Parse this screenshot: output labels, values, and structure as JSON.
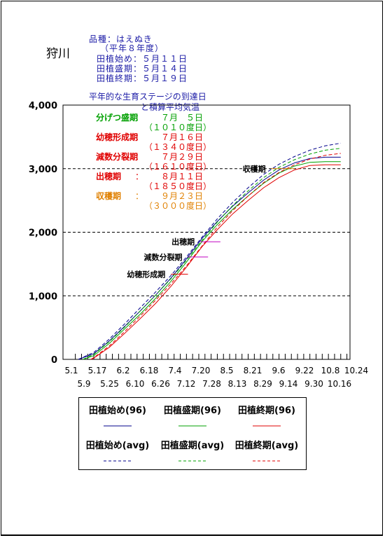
{
  "place": "狩川",
  "variety_line": "品種：はえぬき",
  "year_line": "（平年８年度）",
  "planting_lines": [
    "田植始め：５月１１日",
    "田植盛期：５月１４日",
    "田植終期：５月１９日"
  ],
  "chart_title_lines": [
    "平年的な生育ステージの到達日",
    "と積算平均気温"
  ],
  "stages": [
    {
      "name": "分げつ盛期",
      "sep": "：",
      "date": "７月　５日",
      "temp": "（１０１０度日）",
      "color": "#00a000"
    },
    {
      "name": "幼穂形成期",
      "sep": "：",
      "date": "７月１６日",
      "temp": "（１３４０度日）",
      "color": "#e00000"
    },
    {
      "name": "減数分裂期",
      "sep": "：",
      "date": "７月２９日",
      "temp": "（１６１０度日）",
      "color": "#e00000"
    },
    {
      "name": "出穂期",
      "sep": "：",
      "date": "８月１１日",
      "temp": "（１８５０度日）",
      "color": "#e00000"
    },
    {
      "name": "収穫期",
      "sep": "：",
      "date": "９月２３日",
      "temp": "（３０００度日）",
      "color": "#e08000"
    }
  ],
  "chart_data": {
    "type": "line",
    "title": "",
    "xlabel": "",
    "ylabel": "",
    "ylim": [
      0,
      4000
    ],
    "y_ticks": [
      0,
      1000,
      2000,
      3000,
      4000
    ],
    "y_tick_labels": [
      "0",
      "1,000",
      "2,000",
      "3,000",
      "4,000"
    ],
    "x_tick_labels_top": [
      "5.1",
      "5.17",
      "6.2",
      "6.18",
      "7.4",
      "7.20",
      "8.5",
      "8.21",
      "9.6",
      "9.22",
      "10.8",
      "10.24"
    ],
    "x_tick_labels_bottom": [
      "5.9",
      "5.25",
      "6.10",
      "6.26",
      "7.12",
      "7.28",
      "8.13",
      "8.29",
      "9.14",
      "9.30",
      "10.16"
    ],
    "x_start_day": 0,
    "x_end_day": 186,
    "dashed_gridlines_y": [
      1000,
      2000,
      3000
    ],
    "series": [
      {
        "name": "田植始め(96)",
        "color": "#00008b",
        "style": "solid",
        "x": [
          10,
          20,
          30,
          40,
          50,
          60,
          70,
          80,
          90,
          100,
          110,
          120,
          130,
          140,
          150,
          160,
          170,
          180
        ],
        "y": [
          0,
          90,
          290,
          520,
          760,
          1010,
          1280,
          1580,
          1900,
          2170,
          2410,
          2620,
          2820,
          2980,
          3090,
          3160,
          3180,
          3180
        ]
      },
      {
        "name": "田植盛期(96)",
        "color": "#00a000",
        "style": "solid",
        "x": [
          13,
          20,
          30,
          40,
          50,
          60,
          70,
          80,
          90,
          100,
          110,
          120,
          130,
          140,
          150,
          160,
          170,
          180
        ],
        "y": [
          0,
          60,
          250,
          480,
          710,
          960,
          1230,
          1530,
          1850,
          2120,
          2360,
          2570,
          2770,
          2930,
          3040,
          3100,
          3110,
          3110
        ]
      },
      {
        "name": "田植終期(96)",
        "color": "#e00000",
        "style": "solid",
        "x": [
          18,
          20,
          30,
          40,
          50,
          60,
          70,
          80,
          90,
          100,
          110,
          120,
          130,
          140,
          150,
          160,
          170,
          180
        ],
        "y": [
          0,
          20,
          190,
          410,
          640,
          880,
          1150,
          1450,
          1770,
          2040,
          2290,
          2500,
          2700,
          2860,
          2980,
          3050,
          3060,
          3060
        ]
      },
      {
        "name": "田植始め(avg)",
        "color": "#00008b",
        "style": "dashed",
        "x": [
          10,
          20,
          30,
          40,
          50,
          60,
          70,
          80,
          90,
          100,
          110,
          120,
          130,
          140,
          150,
          160,
          170,
          180
        ],
        "y": [
          0,
          110,
          320,
          560,
          810,
          1060,
          1320,
          1610,
          1920,
          2210,
          2470,
          2700,
          2910,
          3070,
          3190,
          3290,
          3360,
          3400
        ]
      },
      {
        "name": "田植盛期(avg)",
        "color": "#00a000",
        "style": "dashed",
        "x": [
          13,
          20,
          30,
          40,
          50,
          60,
          70,
          80,
          90,
          100,
          110,
          120,
          130,
          140,
          150,
          160,
          170,
          180
        ],
        "y": [
          0,
          80,
          280,
          510,
          760,
          1010,
          1270,
          1560,
          1870,
          2160,
          2420,
          2650,
          2860,
          3020,
          3140,
          3230,
          3290,
          3320
        ]
      },
      {
        "name": "田植終期(avg)",
        "color": "#e00000",
        "style": "dashed",
        "x": [
          18,
          20,
          30,
          40,
          50,
          60,
          70,
          80,
          90,
          100,
          110,
          120,
          130,
          140,
          150,
          160,
          170,
          180
        ],
        "y": [
          0,
          30,
          210,
          440,
          680,
          930,
          1190,
          1470,
          1780,
          2080,
          2340,
          2570,
          2780,
          2940,
          3060,
          3150,
          3210,
          3240
        ]
      }
    ],
    "stage_markers": [
      {
        "label": "幼穂形成期",
        "y": 1340,
        "x_from": 70,
        "x_to": 81,
        "color": "#e00000"
      },
      {
        "label": "減数分裂期",
        "y": 1610,
        "x_from": 81,
        "x_to": 94,
        "color": "#c000c0"
      },
      {
        "label": "出穂期",
        "y": 1850,
        "x_from": 89,
        "x_to": 102,
        "color": "#c000c0"
      },
      {
        "label": "収穫期",
        "y": 3000,
        "x_from": 135,
        "x_to": 150,
        "color": "#e08000"
      }
    ]
  },
  "legend": {
    "items": [
      {
        "label": "田植始め(96)",
        "color": "#00008b",
        "style": "solid"
      },
      {
        "label": "田植盛期(96)",
        "color": "#00a000",
        "style": "solid"
      },
      {
        "label": "田植終期(96)",
        "color": "#e00000",
        "style": "solid"
      },
      {
        "label": "田植始め(avg)",
        "color": "#00008b",
        "style": "dashed"
      },
      {
        "label": "田植盛期(avg)",
        "color": "#00a000",
        "style": "dashed"
      },
      {
        "label": "田植終期(avg)",
        "color": "#e00000",
        "style": "dashed"
      }
    ]
  }
}
